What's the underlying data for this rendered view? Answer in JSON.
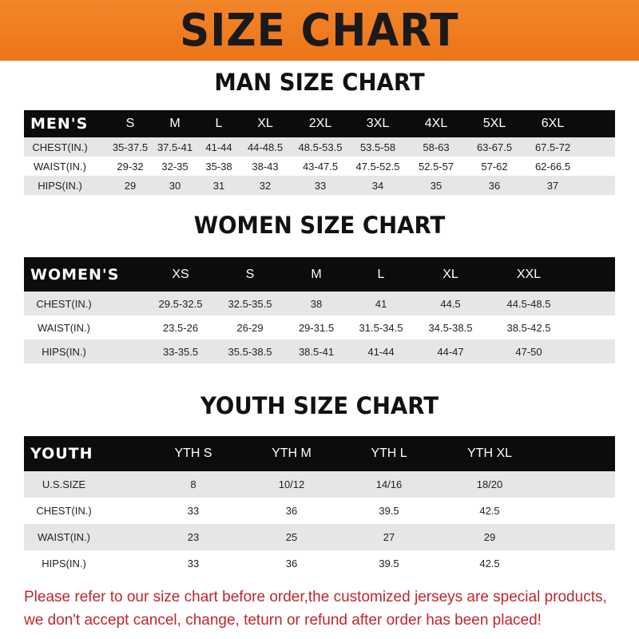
{
  "banner_title": "SIZE CHART",
  "tables": [
    {
      "title": "MAN SIZE CHART",
      "header": [
        "MEN'S",
        "S",
        "M",
        "L",
        "XL",
        "2XL",
        "3XL",
        "4XL",
        "5XL",
        "6XL"
      ],
      "rows": [
        [
          "CHEST(IN.)",
          "35-37.5",
          "37.5-41",
          "41-44",
          "44-48.5",
          "48.5-53.5",
          "53.5-58",
          "58-63",
          "63-67.5",
          "67.5-72"
        ],
        [
          "WAIST(IN.)",
          "29-32",
          "32-35",
          "35-38",
          "38-43",
          "43-47.5",
          "47.5-52.5",
          "52.5-57",
          "57-62",
          "62-66.5"
        ],
        [
          "HIPS(IN.)",
          "29",
          "30",
          "31",
          "32",
          "33",
          "34",
          "35",
          "36",
          "37"
        ]
      ]
    },
    {
      "title": "WOMEN SIZE CHART",
      "header": [
        "WOMEN'S",
        "XS",
        "S",
        "M",
        "L",
        "XL",
        "XXL"
      ],
      "rows": [
        [
          "CHEST(IN.)",
          "29.5-32.5",
          "32.5-35.5",
          "38",
          "41",
          "44.5",
          "44.5-48.5"
        ],
        [
          "WAIST(IN.)",
          "23.5-26",
          "26-29",
          "29-31.5",
          "31.5-34.5",
          "34.5-38.5",
          "38.5-42.5"
        ],
        [
          "HIPS(IN.)",
          "33-35.5",
          "35.5-38.5",
          "38.5-41",
          "41-44",
          "44-47",
          "47-50"
        ]
      ]
    },
    {
      "title": "YOUTH SIZE CHART",
      "header": [
        "YOUTH",
        "YTH S",
        "YTH M",
        "YTH L",
        "YTH XL"
      ],
      "rows": [
        [
          "U.S.SIZE",
          "8",
          "10/12",
          "14/16",
          "18/20"
        ],
        [
          "CHEST(IN.)",
          "33",
          "36",
          "39.5",
          "42.5"
        ],
        [
          "WAIST(IN.)",
          "23",
          "25",
          "27",
          "29"
        ],
        [
          "HIPS(IN.)",
          "33",
          "36",
          "39.5",
          "42.5"
        ]
      ]
    }
  ],
  "notice": {
    "line1": "Please refer to our size chart before order,the customized jerseys are special products,",
    "line2": "we don't accept cancel, change, teturn or refund after order has been placed!"
  },
  "colors": {
    "banner": "#ef7b1f",
    "header_row": "#0d0b0b",
    "notice": "#c0262c"
  }
}
